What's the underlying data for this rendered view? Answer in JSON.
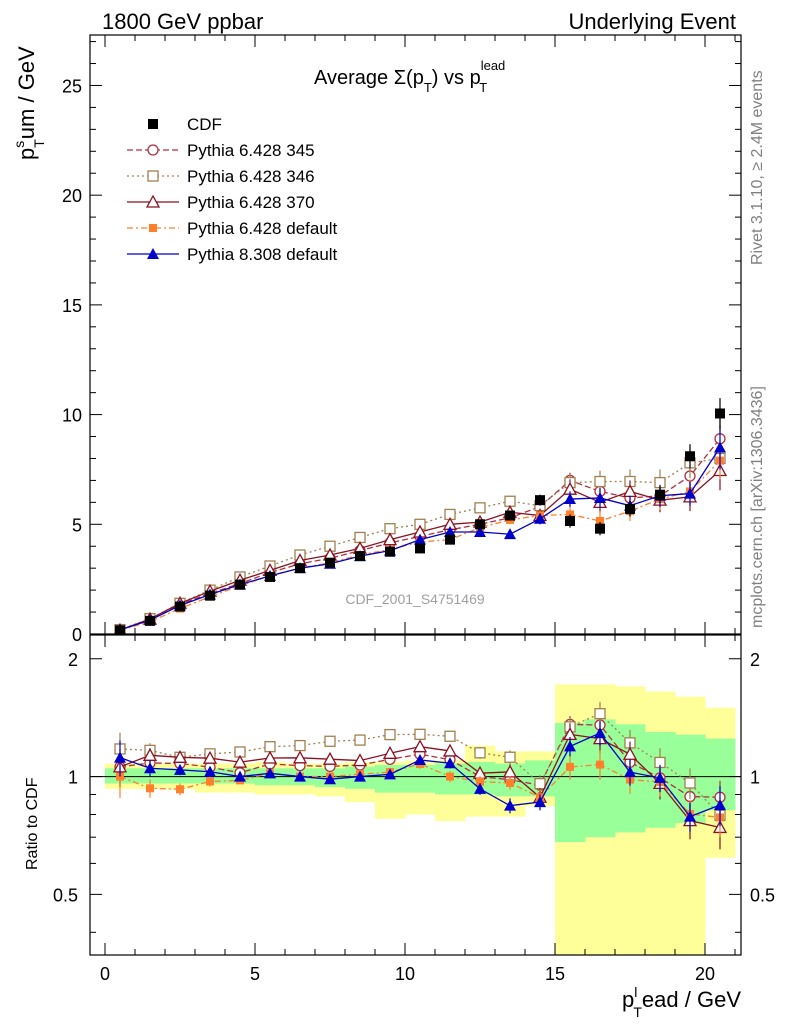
{
  "header": {
    "left": "1800 GeV ppbar",
    "right": "Underlying Event"
  },
  "side": {
    "version": "Rivet 3.1.10, ≥ 2.4M events",
    "site": "mcplots.cern.ch [arXiv:1306.3436]"
  },
  "chart_data": {
    "type": "line",
    "title_main": "Average Σ(p",
    "title_sub1": "T",
    "title_mid": ") vs p",
    "title_sup2": "lead",
    "title_sub2": "T",
    "watermark": "CDF_2001_S4751469",
    "ylabel_main": "p",
    "ylabel_sup": "s",
    "ylabel_sub": "T",
    "ylabel_rest": "um / GeV",
    "xlabel_main": "p",
    "xlabel_sup": "l",
    "xlabel_sub": "T",
    "xlabel_rest": "ead / GeV",
    "ratio_ylabel": "Ratio to CDF",
    "xlim": [
      -0.5,
      21.2
    ],
    "ylim": [
      0,
      27.3
    ],
    "ratio_ylim": [
      0.35,
      2.3
    ],
    "x_ticks": [
      "0",
      "5",
      "10",
      "15",
      "20"
    ],
    "y_ticks": [
      "5",
      "10",
      "15",
      "20",
      "25"
    ],
    "y_tick_zero": "0",
    "ratio_ticks": [
      "0.5",
      "1",
      "2"
    ],
    "x": [
      0.5,
      1.5,
      2.5,
      3.5,
      4.5,
      5.5,
      6.5,
      7.5,
      8.5,
      9.5,
      10.5,
      11.5,
      12.5,
      13.5,
      14.5,
      15.5,
      16.5,
      17.5,
      18.5,
      19.5,
      20.5
    ],
    "data": {
      "name": "CDF",
      "values": [
        0.17,
        0.6,
        1.25,
        1.75,
        2.25,
        2.6,
        3.0,
        3.25,
        3.55,
        3.75,
        3.9,
        4.3,
        5.0,
        5.4,
        6.1,
        5.15,
        4.8,
        5.7,
        6.35,
        8.1,
        10.05
      ],
      "errors": [
        0.02,
        0.03,
        0.04,
        0.05,
        0.06,
        0.07,
        0.08,
        0.09,
        0.1,
        0.12,
        0.14,
        0.16,
        0.18,
        0.2,
        0.25,
        0.3,
        0.3,
        0.35,
        0.4,
        0.55,
        0.7
      ],
      "color": "#000000"
    },
    "band_outer": [
      [
        0.93,
        1.08
      ],
      [
        0.93,
        1.08
      ],
      [
        0.93,
        1.08
      ],
      [
        0.91,
        1.08
      ],
      [
        0.91,
        1.08
      ],
      [
        0.9,
        1.09
      ],
      [
        0.9,
        1.08
      ],
      [
        0.89,
        1.08
      ],
      [
        0.86,
        1.09
      ],
      [
        0.78,
        1.09
      ],
      [
        0.8,
        1.1
      ],
      [
        0.77,
        1.1
      ],
      [
        0.79,
        1.2
      ],
      [
        0.79,
        1.16
      ],
      [
        0.84,
        1.16
      ],
      [
        0.3,
        1.72
      ],
      [
        0.3,
        1.72
      ],
      [
        0.3,
        1.7
      ],
      [
        0.3,
        1.65
      ],
      [
        0.3,
        1.6
      ],
      [
        0.62,
        1.5
      ]
    ],
    "band_inner": [
      [
        0.96,
        1.05
      ],
      [
        0.96,
        1.05
      ],
      [
        0.96,
        1.05
      ],
      [
        0.96,
        1.05
      ],
      [
        0.96,
        1.05
      ],
      [
        0.95,
        1.05
      ],
      [
        0.95,
        1.05
      ],
      [
        0.94,
        1.05
      ],
      [
        0.93,
        1.06
      ],
      [
        0.91,
        1.07
      ],
      [
        0.91,
        1.07
      ],
      [
        0.9,
        1.08
      ],
      [
        0.9,
        1.09
      ],
      [
        0.89,
        1.08
      ],
      [
        0.89,
        1.1
      ],
      [
        0.68,
        1.37
      ],
      [
        0.7,
        1.4
      ],
      [
        0.72,
        1.36
      ],
      [
        0.74,
        1.3
      ],
      [
        0.76,
        1.28
      ],
      [
        0.82,
        1.25
      ]
    ],
    "series": [
      {
        "name": "Pythia 6.428 345",
        "color": "#b03040",
        "dash": "6,3",
        "marker": "circle-open",
        "values": [
          0.18,
          0.65,
          1.35,
          1.85,
          2.3,
          2.8,
          3.2,
          3.45,
          3.8,
          4.15,
          4.45,
          4.75,
          5.0,
          5.3,
          5.8,
          7.0,
          6.5,
          6.2,
          6.3,
          7.2,
          8.9
        ],
        "errors": [
          0.02,
          0.03,
          0.04,
          0.05,
          0.05,
          0.06,
          0.07,
          0.08,
          0.09,
          0.1,
          0.12,
          0.14,
          0.16,
          0.2,
          0.25,
          0.35,
          0.5,
          0.5,
          0.55,
          0.6,
          0.9
        ]
      },
      {
        "name": "Pythia 6.428 346",
        "color": "#a08050",
        "dash": "2,3",
        "marker": "square-open",
        "values": [
          0.2,
          0.7,
          1.4,
          2.0,
          2.6,
          3.1,
          3.6,
          4.0,
          4.4,
          4.8,
          5.0,
          5.45,
          5.75,
          6.05,
          5.85,
          6.9,
          6.95,
          6.95,
          6.9,
          7.8,
          8.0
        ],
        "errors": [
          0.02,
          0.03,
          0.04,
          0.05,
          0.06,
          0.07,
          0.08,
          0.09,
          0.1,
          0.12,
          0.14,
          0.16,
          0.2,
          0.25,
          0.3,
          0.4,
          0.5,
          0.55,
          0.6,
          0.7,
          0.9
        ]
      },
      {
        "name": "Pythia 6.428 370",
        "color": "#8b1020",
        "dash": "",
        "marker": "triangle-open",
        "values": [
          0.18,
          0.68,
          1.4,
          1.95,
          2.45,
          2.9,
          3.35,
          3.6,
          3.9,
          4.3,
          4.65,
          5.0,
          5.1,
          5.55,
          5.4,
          6.6,
          6.0,
          6.5,
          6.1,
          6.25,
          7.45
        ],
        "errors": [
          0.02,
          0.03,
          0.04,
          0.05,
          0.06,
          0.07,
          0.08,
          0.09,
          0.1,
          0.12,
          0.14,
          0.16,
          0.2,
          0.25,
          0.3,
          0.45,
          0.5,
          0.5,
          0.55,
          0.65,
          0.9
        ]
      },
      {
        "name": "Pythia 6.428 default",
        "color": "#ff7f2a",
        "dash": "6,3,2,3",
        "marker": "square-filled",
        "values": [
          0.17,
          0.56,
          1.16,
          1.7,
          2.2,
          2.65,
          3.0,
          3.25,
          3.6,
          3.85,
          4.2,
          4.3,
          4.85,
          5.2,
          5.4,
          5.45,
          5.15,
          5.6,
          6.15,
          6.5,
          7.9
        ],
        "errors": [
          0.02,
          0.03,
          0.04,
          0.05,
          0.05,
          0.06,
          0.07,
          0.08,
          0.09,
          0.1,
          0.12,
          0.14,
          0.16,
          0.2,
          0.25,
          0.4,
          0.45,
          0.45,
          0.5,
          0.55,
          0.85
        ]
      },
      {
        "name": "Pythia 8.308 default",
        "color": "#0000cc",
        "dash": "",
        "marker": "triangle-filled",
        "values": [
          0.19,
          0.63,
          1.3,
          1.8,
          2.25,
          2.65,
          3.0,
          3.2,
          3.55,
          3.8,
          4.3,
          4.65,
          4.65,
          4.55,
          5.25,
          6.15,
          6.2,
          5.85,
          6.3,
          6.4,
          8.5
        ],
        "errors": [
          0.02,
          0.03,
          0.04,
          0.05,
          0.05,
          0.06,
          0.07,
          0.08,
          0.09,
          0.1,
          0.12,
          0.14,
          0.16,
          0.2,
          0.25,
          0.35,
          0.45,
          0.45,
          0.5,
          0.55,
          1.0
        ]
      }
    ]
  }
}
